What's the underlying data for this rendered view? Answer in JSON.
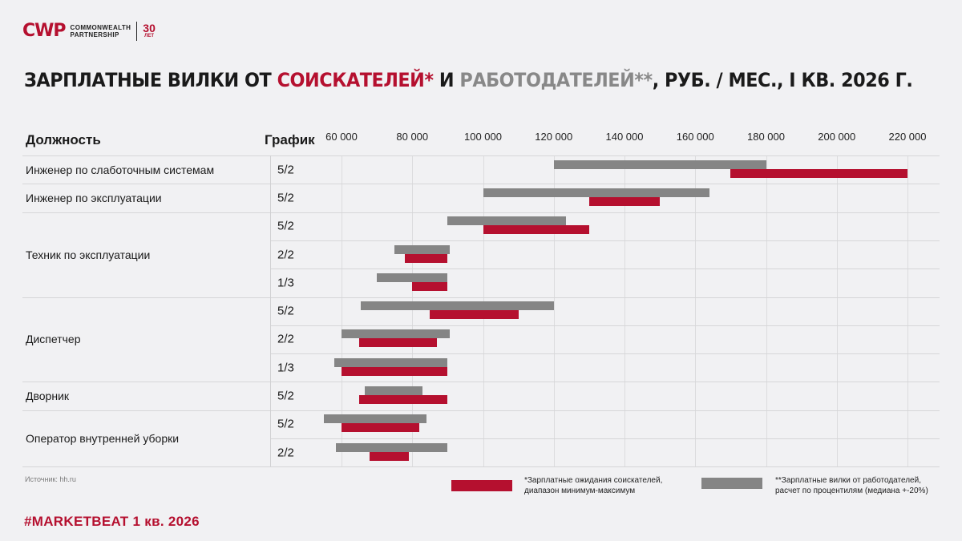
{
  "logo": {
    "mark": "CWP",
    "line1": "COMMONWEALTH",
    "line2": "PARTNERSHIP",
    "years": "30",
    "years_label": "ЛЕТ"
  },
  "title": {
    "part1": "ЗАРПЛАТНЫЕ ВИЛКИ ОТ ",
    "part2": "СОИСКАТЕЛЕЙ*",
    "part3": " И ",
    "part4": "РАБОТОДАТЕЛЕЙ**",
    "part5": ", РУБ. / МЕС., I КВ. 2026 Г."
  },
  "headers": {
    "position": "Должность",
    "schedule": "График"
  },
  "colors": {
    "applicant": "#b5102f",
    "employer": "#858585",
    "accent": "#b5102f"
  },
  "chart_data": {
    "type": "bar",
    "orientation": "horizontal-range",
    "x_ticks": [
      "60 000",
      "80 000",
      "100 000",
      "120 000",
      "140 000",
      "160 000",
      "180 000",
      "200 000",
      "220 000"
    ],
    "x_tick_values": [
      60000,
      80000,
      100000,
      120000,
      140000,
      160000,
      180000,
      200000,
      220000
    ],
    "xlim": [
      54000,
      226000
    ],
    "grid": true,
    "groups": [
      {
        "position": "Инженер по слаботочным системам",
        "rows": [
          0
        ]
      },
      {
        "position": "Инженер по эксплуатации",
        "rows": [
          1
        ]
      },
      {
        "position": "Техник по эксплуатации",
        "rows": [
          2,
          3,
          4
        ]
      },
      {
        "position": "Диспетчер",
        "rows": [
          5,
          6,
          7
        ]
      },
      {
        "position": "Дворник",
        "rows": [
          8
        ]
      },
      {
        "position": "Оператор внутренней уборки",
        "rows": [
          9,
          10
        ]
      }
    ],
    "rows": [
      {
        "schedule": "5/2",
        "employer": [
          120000,
          180000
        ],
        "applicant": [
          170000,
          220000
        ]
      },
      {
        "schedule": "5/2",
        "employer": [
          100000,
          164000
        ],
        "applicant": [
          130000,
          150000
        ]
      },
      {
        "schedule": "5/2",
        "employer": [
          90000,
          123500
        ],
        "applicant": [
          100000,
          130000
        ]
      },
      {
        "schedule": "2/2",
        "employer": [
          75000,
          90500
        ],
        "applicant": [
          78000,
          90000
        ]
      },
      {
        "schedule": "1/3",
        "employer": [
          70000,
          90000
        ],
        "applicant": [
          80000,
          90000
        ]
      },
      {
        "schedule": "5/2",
        "employer": [
          65500,
          120000
        ],
        "applicant": [
          85000,
          110000
        ]
      },
      {
        "schedule": "2/2",
        "employer": [
          60000,
          90500
        ],
        "applicant": [
          65000,
          87000
        ]
      },
      {
        "schedule": "1/3",
        "employer": [
          58000,
          90000
        ],
        "applicant": [
          60000,
          90000
        ]
      },
      {
        "schedule": "5/2",
        "employer": [
          66500,
          83000
        ],
        "applicant": [
          65000,
          90000
        ]
      },
      {
        "schedule": "5/2",
        "employer": [
          55000,
          84000
        ],
        "applicant": [
          60000,
          82000
        ]
      },
      {
        "schedule": "2/2",
        "employer": [
          58500,
          90000
        ],
        "applicant": [
          68000,
          79000
        ]
      }
    ],
    "legend": {
      "applicant_line1": "*Зарплатные ожидания соискателей,",
      "applicant_line2": "диапазон минимум-максимум",
      "employer_line1": "**Зарплатные вилки от работодателей,",
      "employer_line2": "расчет по процентилям (медиана +-20%)"
    }
  },
  "source": "Источник: hh.ru",
  "footer": "#MARKETBEAT 1 кв. 2026"
}
